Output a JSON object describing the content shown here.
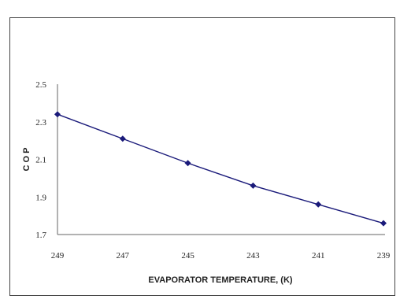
{
  "chart_data": {
    "type": "line",
    "title": "",
    "xlabel": "EVAPORATOR TEMPERATURE, (K)",
    "ylabel": "C O P",
    "x_categories": [
      "249",
      "247",
      "245",
      "243",
      "241",
      "239"
    ],
    "values": [
      2.34,
      2.21,
      2.08,
      1.96,
      1.86,
      1.76
    ],
    "ylim": [
      1.7,
      2.5
    ],
    "yticks": [
      "2.5",
      "2.3",
      "2.1",
      "1.9",
      "1.7"
    ],
    "ytick_values": [
      2.5,
      2.3,
      2.1,
      1.9,
      1.7
    ],
    "grid": false,
    "legend": "none",
    "series_color": "#1a1a7a",
    "marker": "diamond"
  }
}
